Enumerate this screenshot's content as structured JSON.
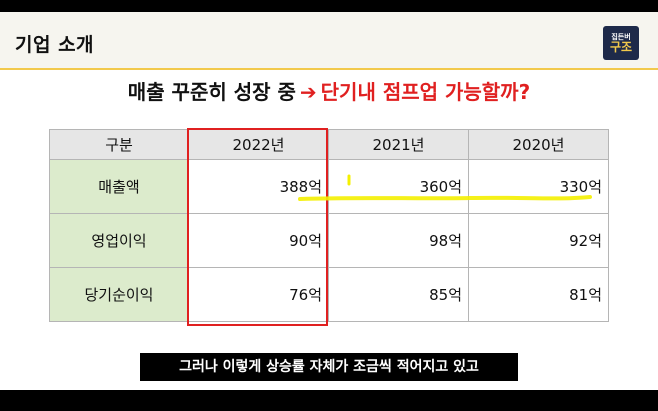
{
  "slide": {
    "section_title": "기업 소개",
    "logo": {
      "top": "집든버",
      "bottom": "구조"
    },
    "headline": {
      "part1": "매출 꾸준히 성장 중",
      "arrow": "➔",
      "part2": "단기내 점프업 가능할까?"
    }
  },
  "table": {
    "headers": [
      "구분",
      "2022년",
      "2021년",
      "2020년"
    ],
    "rows": [
      {
        "label": "매출액",
        "values": [
          "388억",
          "360억",
          "330억"
        ]
      },
      {
        "label": "영업이익",
        "values": [
          "90억",
          "98억",
          "92억"
        ]
      },
      {
        "label": "당기순이익",
        "values": [
          "76억",
          "85억",
          "81억"
        ]
      }
    ]
  },
  "annotations": {
    "box_color": "#e02020",
    "highlighter_color": "#f4f000"
  },
  "subtitle": "그러나 이렇게 상승률 자체가 조금씩 적어지고 있고"
}
